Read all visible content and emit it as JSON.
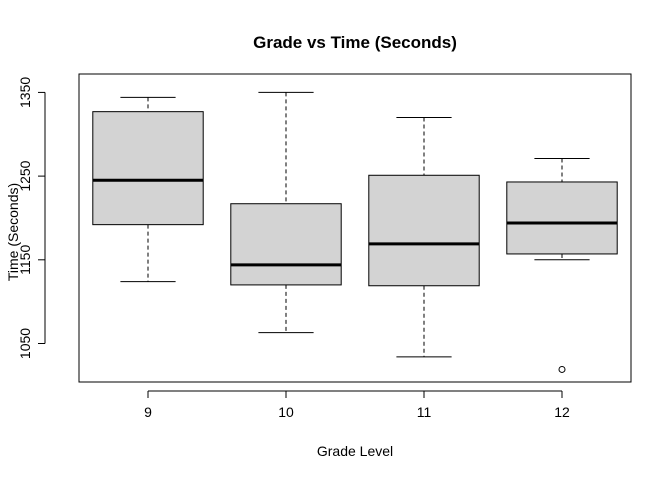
{
  "chart_data": {
    "type": "boxplot",
    "title": "Grade vs Time (Seconds)",
    "xlabel": "Grade Level",
    "ylabel": "Time (Seconds)",
    "ylim": [
      1004,
      1372
    ],
    "yticks": [
      1050,
      1150,
      1250,
      1350
    ],
    "categories": [
      "9",
      "10",
      "11",
      "12"
    ],
    "boxes": [
      {
        "name": "9",
        "min": 1124,
        "q1": 1192,
        "median": 1245,
        "q3": 1327,
        "max": 1344,
        "outliers": []
      },
      {
        "name": "10",
        "min": 1063,
        "q1": 1120,
        "median": 1144,
        "q3": 1217,
        "max": 1350,
        "outliers": []
      },
      {
        "name": "11",
        "min": 1034,
        "q1": 1119,
        "median": 1169,
        "q3": 1251,
        "max": 1320,
        "outliers": []
      },
      {
        "name": "12",
        "min": 1150,
        "q1": 1157,
        "median": 1194,
        "q3": 1243,
        "max": 1271,
        "outliers": [
          1019
        ]
      }
    ],
    "colors": {
      "box_fill": "#d3d3d3",
      "stroke": "#000000",
      "background": "#ffffff"
    }
  }
}
